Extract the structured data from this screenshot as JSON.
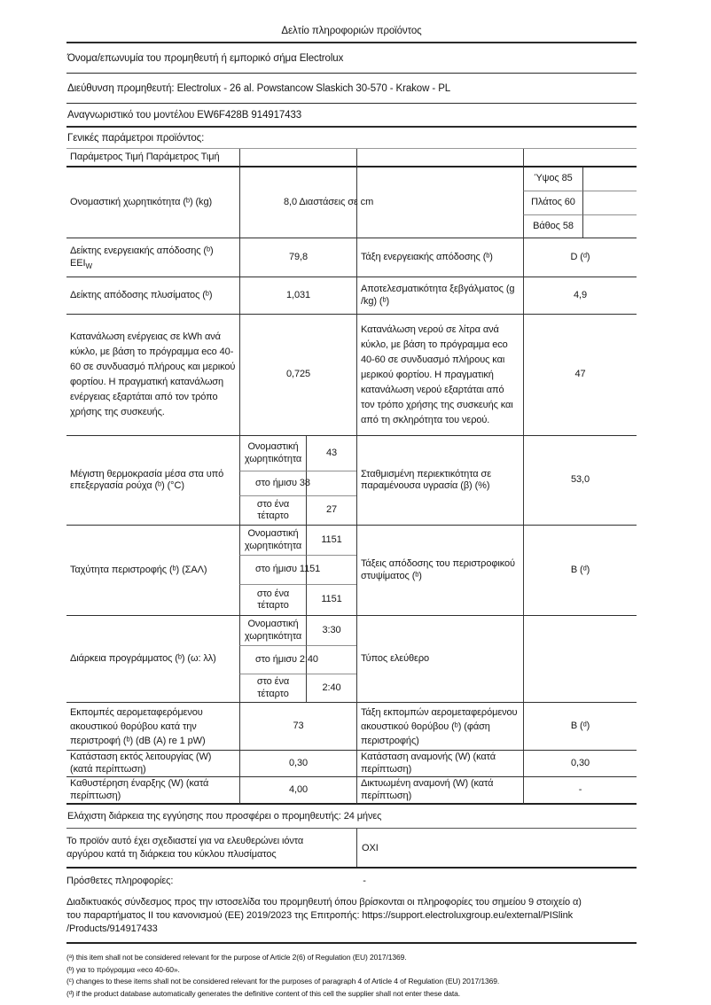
{
  "doc": {
    "title": "Δελτίο πληροφοριών προϊόντος",
    "supplier": "Όνομα/επωνυμία του προμηθευτή ή εμπορικό σήμα Electrolux",
    "address": "Διεύθυνση προμηθευτή: Electrolux - 26 al. Powstancow Slaskich 30-570 - Krakow - PL",
    "model": "Αναγνωριστικό του μοντέλου EW6F428B 914917433",
    "general_heading": "Γενικές παράμετροι προϊόντος:"
  },
  "table": {
    "header": "Παράμετρος Τιμή Παράμετρος Τιμή",
    "capacity": {
      "label": "Ονομαστική χωρητικότητα (ᵇ) (kg)",
      "value": "8,0 Διαστάσεις σε cm",
      "dims": [
        "Ύψος 85",
        "Πλάτος 60",
        "Βάθος 58"
      ]
    },
    "eei": {
      "label_line1": "Δείκτης ενεργειακής απόδοσης (ᵇ)",
      "label_base": "EEI",
      "label_sub": "W",
      "value": "79,8",
      "right_label": "Τάξη ενεργειακής απόδοσης (ᵇ)",
      "right_value": "D (ᵈ)"
    },
    "washing_index": {
      "label": "Δείκτης απόδοσης πλυσίματος (ᵇ)",
      "value": "1,031",
      "right_label": "Αποτελεσματικότητα ξεβγάλματος (g /kg) (ᵇ)",
      "right_value": "4,9"
    },
    "energy": {
      "label": "Κατανάλωση ενέργειας σε kWh ανά κύκλο, με βάση το πρόγραμμα eco 40-60 σε συνδυασμό πλήρους και μερικού φορτίου. Η πραγματική κατανάλωση ενέργειας εξαρτάται από τον τρόπο χρήσης της συσκευής.",
      "value": "0,725",
      "right_label": "Κατανάλωση νερού σε λίτρα ανά κύκλο, με βάση το πρόγραμμα eco 40-60 σε συνδυασμό πλήρους και μερικού φορτίου. Η πραγματική κατανάλωση νερού εξαρτάται από τον τρόπο χρήσης της συσκευής και από τη σκληρότητα του νερού.",
      "right_value": "47"
    },
    "temperature": {
      "label": "Μέγιστη θερμοκρασία μέσα στα υπό επεξεργασία ρούχα (ᵇ) (°C)",
      "rows": [
        {
          "label": "Ονομαστική χωρητικότητα",
          "value": "43"
        },
        {
          "label": "στο ήμισυ 38",
          "value": ""
        },
        {
          "label": "στο ένα τέταρτο",
          "value": "27"
        }
      ],
      "right_label": "Σταθμισμένη περιεκτικότητα σε παραμένουσα υγρασία (β) (%)",
      "right_value": "53,0"
    },
    "spin": {
      "label": "Ταχύτητα περιστροφής (ᵇ) (ΣΑΛ)",
      "rows": [
        {
          "label": "Ονομαστική χωρητικότητα",
          "value": "1151"
        },
        {
          "label": "στο ήμισυ 1151",
          "value": ""
        },
        {
          "label": "στο ένα τέταρτο",
          "value": "1151"
        }
      ],
      "right_label": "Τάξεις απόδοσης του περιστροφικού στυψίματος (ᵇ)",
      "right_value": "B (ᵈ)"
    },
    "duration": {
      "label": "Διάρκεια προγράμματος (ᵇ) (ω: λλ)",
      "rows": [
        {
          "label": "Ονομαστική χωρητικότητα",
          "value": "3:30"
        },
        {
          "label": "στο ήμισυ 2:40",
          "value": ""
        },
        {
          "label": "στο ένα τέταρτο",
          "value": "2:40"
        }
      ],
      "right_label": "Τύπος ελεύθερο",
      "right_value": ""
    },
    "noise": {
      "label": "Εκπομπές αερομεταφερόμενου ακουστικού θορύβου κατά την περιστροφή (ᵇ) (dB (A) re 1 pW)",
      "value": "73",
      "right_label": "Τάξη εκπομπών αερομεταφερόμενου ακουστικού θορύβου (ᵇ) (φάση περιστροφής)",
      "right_value": "B (ᵈ)"
    },
    "off_mode": {
      "label": "Κατάσταση εκτός λειτουργίας (W) (κατά περίπτωση)",
      "value": "0,30",
      "right_label": "Κατάσταση αναμονής (W) (κατά περίπτωση)",
      "right_value": "0,30"
    },
    "delay_start": {
      "label": "Καθυστέρηση έναρξης (W) (κατά περίπτωση)",
      "value": "4,00",
      "right_label": "Δικτυωμένη αναμονή (W) (κατά περίπτωση)",
      "right_value": "-"
    }
  },
  "footer": {
    "warranty": "Ελάχιστη διάρκεια της εγγύησης που προσφέρει ο προμηθευτής: 24 μήνες",
    "silver_label": "Το προϊόν αυτό έχει σχεδιαστεί για να ελευθερώνει ιόντα αργύρου κατά τη διάρκεια του κύκλου πλυσίματος",
    "silver_value": "ΟΧΙ",
    "additional_label": "Πρόσθετες πληροφορίες:",
    "additional_value": "-",
    "link_lines": [
      "Διαδικτυακός σύνδεσμος προς την ιστοσελίδα του προμηθευτή όπου βρίσκονται οι πληροφορίες του σημείου 9 στοιχείο α)",
      "του παραρτήματος II του κανονισμού (ΕΕ) 2019/2023 της Επιτροπής: https://support.electroluxgroup.eu/external/PISlink",
      "/Products/914917433"
    ],
    "footnotes": [
      "(ᵃ) this item shall not be considered relevant for the purpose of Article 2(6) of Regulation (EU) 2017/1369.",
      "(ᵇ) για το πρόγραμμα «eco 40-60».",
      "(ᶜ) changes to these items shall not be considered relevant for the purposes of paragraph 4 of Article 4 of Regulation (EU) 2017/1369.",
      "(ᵈ) if the product database automatically generates the definitive content of this cell the supplier shall not enter these data."
    ]
  }
}
